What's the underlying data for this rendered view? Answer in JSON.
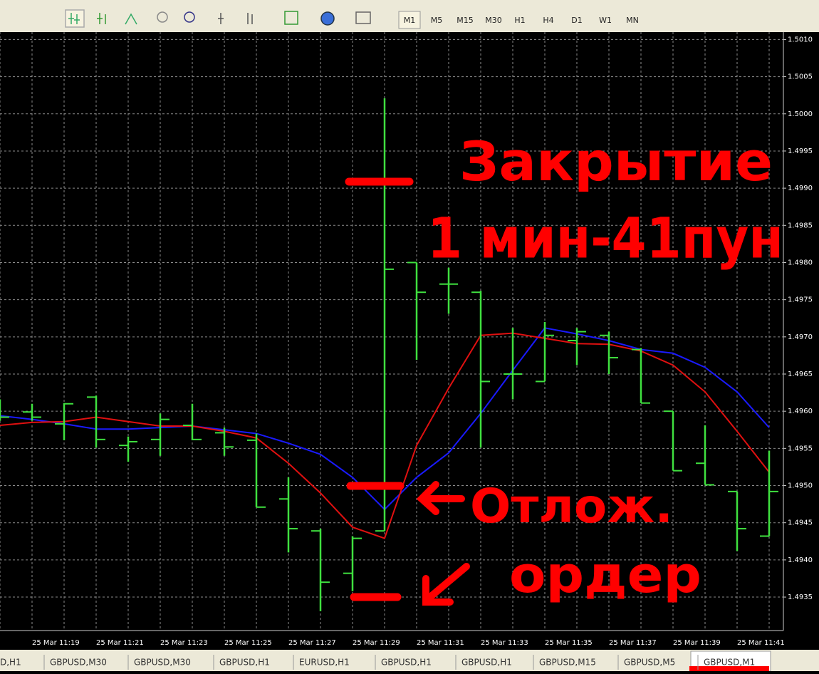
{
  "toolbar": {
    "timeframes": [
      "M1",
      "M5",
      "M15",
      "M30",
      "H1",
      "H4",
      "D1",
      "W1",
      "MN"
    ]
  },
  "tabs": [
    "D,H1",
    "GBPUSD,M30",
    "GBPUSD,M30",
    "GBPUSD,H1",
    "EURUSD,H1",
    "GBPUSD,H1",
    "GBPUSD,H1",
    "GBPUSD,M15",
    "GBPUSD,M5",
    "GBPUSD,M1"
  ],
  "chart_data": {
    "type": "ohlc",
    "categories": [
      null,
      "25 Mar 11:19",
      null,
      "25 Mar 11:21",
      null,
      "25 Mar 11:23",
      null,
      "25 Mar 11:25",
      null,
      "25 Mar 11:27",
      null,
      "25 Mar 11:29",
      null,
      "25 Mar 11:31",
      null,
      "25 Mar 11:33",
      null,
      "25 Mar 11:35",
      null,
      "25 Mar 11:37",
      null,
      "25 Mar 11:39",
      null,
      "25 Mar 11:41",
      null
    ],
    "open": [
      1.4961,
      1.49599,
      1.49583,
      1.49619,
      1.49554,
      1.49562,
      1.49581,
      1.49571,
      1.49561,
      1.49482,
      1.49439,
      1.49382,
      1.49439,
      1.498,
      1.49771,
      1.4976,
      1.4965,
      1.4964,
      1.49695,
      1.49702,
      1.49683,
      1.496,
      1.4953,
      1.49492,
      1.49432
    ],
    "high": [
      1.49616,
      1.4961,
      1.49611,
      1.49621,
      1.49566,
      1.49597,
      1.4961,
      1.49578,
      1.4957,
      1.49511,
      1.49442,
      1.49432,
      1.50021,
      1.498,
      1.49793,
      1.49762,
      1.49712,
      1.4972,
      1.49712,
      1.49707,
      1.49685,
      1.496,
      1.49581,
      1.49492,
      1.49547
    ],
    "low": [
      1.49587,
      1.49587,
      1.49561,
      1.49551,
      1.49532,
      1.4954,
      1.49561,
      1.4954,
      1.49471,
      1.4941,
      1.49331,
      1.49358,
      1.49439,
      1.49669,
      1.49731,
      1.49551,
      1.49616,
      1.4964,
      1.49662,
      1.4965,
      1.49611,
      1.4952,
      1.49501,
      1.49412,
      1.49432
    ],
    "close": [
      1.49592,
      1.49592,
      1.4961,
      1.49562,
      1.49559,
      1.49589,
      1.49562,
      1.49552,
      1.49471,
      1.49442,
      1.4937,
      1.49429,
      1.49791,
      1.4976,
      1.49771,
      1.4964,
      1.4965,
      1.49702,
      1.49707,
      1.49672,
      1.49611,
      1.4952,
      1.49501,
      1.49442,
      1.49492
    ],
    "color": "#3fe03f",
    "lines": [
      {
        "color": "#1a1aff",
        "values": [
          1.49594,
          1.49589,
          1.49583,
          1.49576,
          1.49576,
          1.49578,
          1.4958,
          1.49575,
          1.4957,
          1.49557,
          1.49542,
          1.49511,
          1.49468,
          1.49511,
          1.49544,
          1.49597,
          1.49655,
          1.49712,
          1.49704,
          1.49695,
          1.49683,
          1.49678,
          1.49659,
          1.49626,
          1.49578
        ]
      },
      {
        "color": "#e01010",
        "values": [
          1.49581,
          1.49585,
          1.49586,
          1.49592,
          1.49586,
          1.4958,
          1.4958,
          1.49573,
          1.49564,
          1.4953,
          1.4949,
          1.49444,
          1.49429,
          1.49554,
          1.49631,
          1.49702,
          1.49705,
          1.49698,
          1.49691,
          1.4969,
          1.49681,
          1.49662,
          1.49626,
          1.49573,
          1.49518
        ]
      }
    ],
    "ylim": [
      1.49305,
      1.5011
    ],
    "yticks": [
      {
        "value": 1.501,
        "label": "1.5010"
      },
      {
        "value": 1.5005,
        "label": "1.5005"
      },
      {
        "value": 1.5,
        "label": "1.5000"
      },
      {
        "value": 1.4995,
        "label": "1.4995"
      },
      {
        "value": 1.499,
        "label": "1.4990"
      },
      {
        "value": 1.4985,
        "label": "1.4985"
      },
      {
        "value": 1.498,
        "label": "1.4980"
      },
      {
        "value": 1.4975,
        "label": "1.4975"
      },
      {
        "value": 1.497,
        "label": "1.4970"
      },
      {
        "value": 1.4965,
        "label": "1.4965"
      },
      {
        "value": 1.496,
        "label": "1.4960"
      },
      {
        "value": 1.4955,
        "label": "1.4955"
      },
      {
        "value": 1.495,
        "label": "1.4950"
      },
      {
        "value": 1.4945,
        "label": "1.4945"
      },
      {
        "value": 1.494,
        "label": "1.4940"
      },
      {
        "value": 1.4935,
        "label": "1.4935"
      }
    ],
    "grid": true,
    "annotations": [
      "Закрытие",
      "1 мин-41пун",
      "Отлож.",
      "ордер"
    ]
  }
}
